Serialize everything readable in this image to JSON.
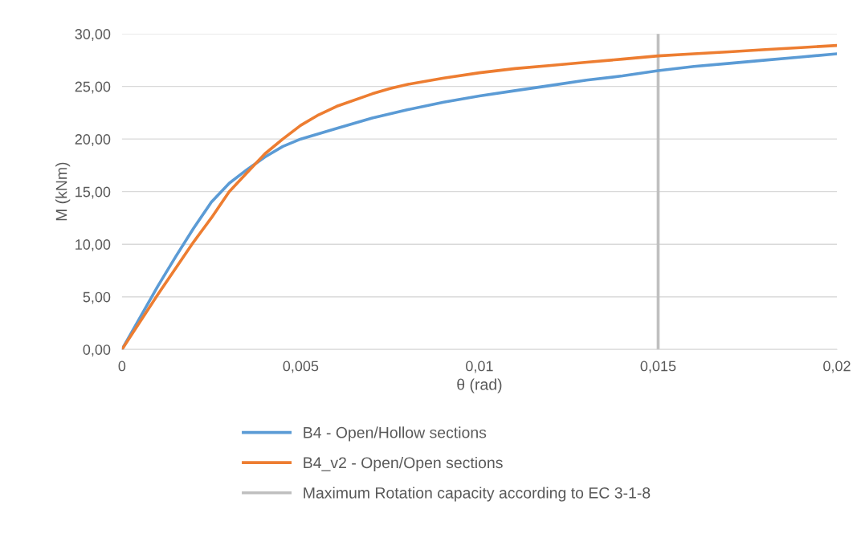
{
  "chart_data": {
    "type": "line",
    "xlabel": "θ (rad)",
    "ylabel": "M (kNm)",
    "series": [
      {
        "name": "B4 - Open/Hollow sections",
        "color": "#5b9bd5",
        "x": [
          0,
          0.001,
          0.0015,
          0.002,
          0.0025,
          0.003,
          0.0035,
          0.004,
          0.0045,
          0.005,
          0.006,
          0.007,
          0.008,
          0.009,
          0.01,
          0.011,
          0.012,
          0.013,
          0.014,
          0.015,
          0.016,
          0.017,
          0.018,
          0.019,
          0.02
        ],
        "values": [
          0,
          6.0,
          8.8,
          11.5,
          14.0,
          15.8,
          17.1,
          18.3,
          19.3,
          20.0,
          21.0,
          22.0,
          22.8,
          23.5,
          24.1,
          24.6,
          25.1,
          25.6,
          26.0,
          26.5,
          26.9,
          27.2,
          27.5,
          27.8,
          28.1
        ]
      },
      {
        "name": "B4_v2 - Open/Open sections",
        "color": "#ed7d31",
        "x": [
          0,
          0.001,
          0.002,
          0.0025,
          0.003,
          0.0035,
          0.004,
          0.0045,
          0.005,
          0.0055,
          0.006,
          0.007,
          0.0075,
          0.008,
          0.009,
          0.01,
          0.011,
          0.012,
          0.013,
          0.014,
          0.015,
          0.016,
          0.017,
          0.018,
          0.019,
          0.02
        ],
        "values": [
          0,
          5.2,
          10.2,
          12.5,
          15.0,
          16.8,
          18.6,
          20.0,
          21.3,
          22.3,
          23.1,
          24.3,
          24.8,
          25.2,
          25.8,
          26.3,
          26.7,
          27.0,
          27.3,
          27.6,
          27.9,
          28.1,
          28.3,
          28.5,
          28.7,
          28.9
        ]
      }
    ],
    "ref_lines": [
      {
        "axis": "x",
        "value": 0.015,
        "label": "Maximum Rotation capacity according to EC 3-1-8",
        "color": "#bfbfbf"
      }
    ],
    "xlim": [
      0,
      0.02
    ],
    "xticks": [
      0,
      {
        "value": 0.005,
        "label": "0,005"
      },
      {
        "value": 0.01,
        "label": "0,01"
      },
      {
        "value": 0.015,
        "label": "0,015"
      },
      {
        "value": 0.02,
        "label": "0,02"
      }
    ],
    "ylim": [
      0,
      30
    ],
    "yticks": [
      {
        "value": 0,
        "label": "0,00"
      },
      {
        "value": 5,
        "label": "5,00"
      },
      {
        "value": 10,
        "label": "10,00"
      },
      {
        "value": 15,
        "label": "15,00"
      },
      {
        "value": 20,
        "label": "20,00"
      },
      {
        "value": 25,
        "label": "25,00"
      },
      {
        "value": 30,
        "label": "30,00"
      }
    ],
    "grid": "y",
    "legend": "bottom",
    "marker": "none",
    "line_style": "solid"
  }
}
